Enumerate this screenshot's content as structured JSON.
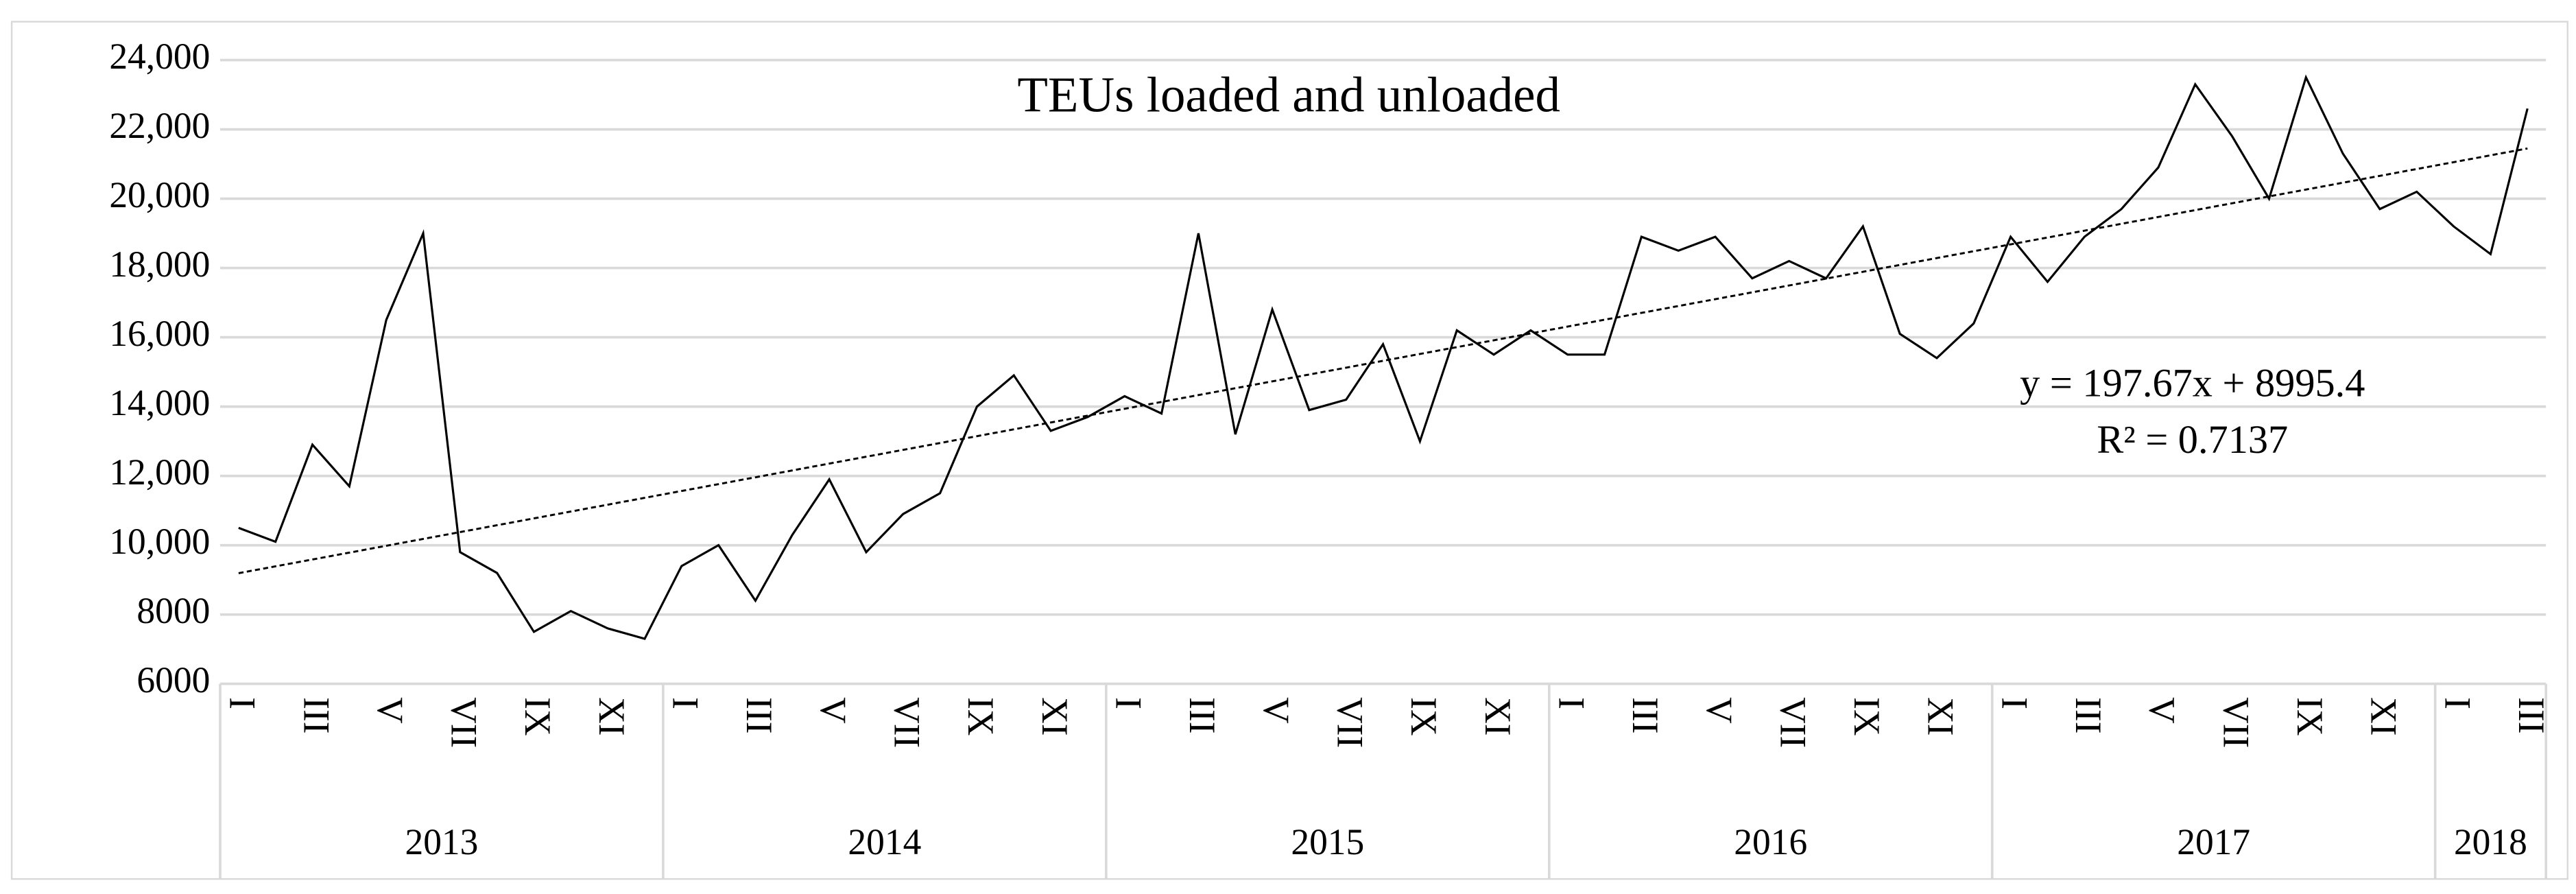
{
  "chart_data": {
    "type": "line",
    "title": "TEUs loaded and unloaded",
    "categories": [
      "I",
      null,
      "III",
      null,
      "V",
      null,
      "VII",
      null,
      "IX",
      null,
      "XI",
      null,
      "I",
      null,
      "III",
      null,
      "V",
      null,
      "VII",
      null,
      "IX",
      null,
      "XI",
      null,
      "I",
      null,
      "III",
      null,
      "V",
      null,
      "VII",
      null,
      "IX",
      null,
      "XI",
      null,
      "I",
      null,
      "III",
      null,
      "V",
      null,
      "VII",
      null,
      "IX",
      null,
      "XI",
      null,
      "I",
      null,
      "III",
      null,
      "V",
      null,
      "VII",
      null,
      "IX",
      null,
      "XI",
      null,
      "I",
      null,
      "III"
    ],
    "groups": [
      "2013",
      null,
      null,
      null,
      null,
      null,
      null,
      null,
      null,
      null,
      null,
      null,
      "2014",
      null,
      null,
      null,
      null,
      null,
      null,
      null,
      null,
      null,
      null,
      null,
      "2015",
      null,
      null,
      null,
      null,
      null,
      null,
      null,
      null,
      null,
      null,
      null,
      "2016",
      null,
      null,
      null,
      null,
      null,
      null,
      null,
      null,
      null,
      null,
      null,
      "2017",
      null,
      null,
      null,
      null,
      null,
      null,
      null,
      null,
      null,
      null,
      null,
      "2018",
      null,
      null
    ],
    "series": [
      {
        "name": "TEUs loaded and unloaded",
        "color": "#000000",
        "values": [
          10500,
          10100,
          12900,
          11700,
          16500,
          19000,
          9800,
          9200,
          7500,
          8100,
          7600,
          7300,
          9400,
          10000,
          8400,
          10300,
          11900,
          9800,
          10900,
          11500,
          14000,
          14900,
          13300,
          13700,
          14300,
          13800,
          19000,
          13200,
          16800,
          13900,
          14200,
          15800,
          13000,
          16200,
          15500,
          16200,
          15500,
          15500,
          18900,
          18500,
          18900,
          17700,
          18200,
          17700,
          19200,
          16100,
          15400,
          16400,
          18900,
          17600,
          18900,
          19700,
          20900,
          23300,
          21800,
          20000,
          23500,
          21300,
          19700,
          20200,
          19200,
          18400,
          22600
        ]
      }
    ],
    "trendline": {
      "equation": "y = 197.67x + 8995.4",
      "r2": "R² = 0.7137",
      "slope": 197.67,
      "intercept": 8995.4
    },
    "ylim": [
      6000,
      24000
    ],
    "yticks": [
      6000,
      8000,
      {
        "value": 10000,
        "label": "10,000"
      },
      {
        "value": 12000,
        "label": "12,000"
      },
      {
        "value": 14000,
        "label": "14,000"
      },
      {
        "value": 16000,
        "label": "16,000"
      },
      {
        "value": 18000,
        "label": "18,000"
      },
      {
        "value": 20000,
        "label": "20,000"
      },
      {
        "value": 22000,
        "label": "22,000"
      },
      {
        "value": 24000,
        "label": "24,000"
      }
    ],
    "grid": true
  }
}
